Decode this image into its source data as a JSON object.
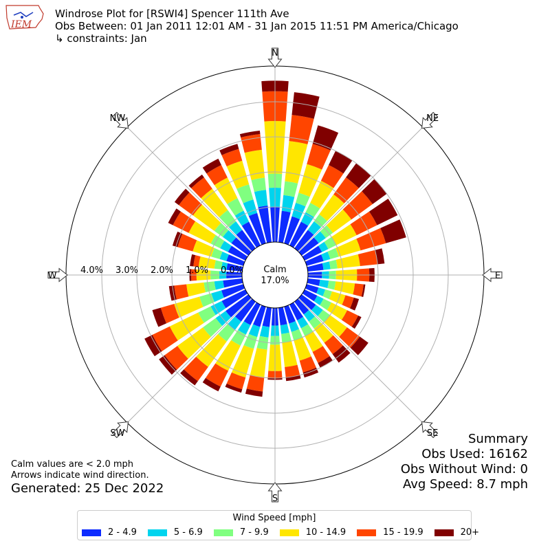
{
  "header": {
    "title": "Windrose Plot for [RSWI4] Spencer 111th Ave",
    "period": "Obs Between: 01 Jan 2011 12:01 AM - 31 Jan 2015 11:51 PM America/Chicago",
    "constraints": "↳ constraints: Jan"
  },
  "logo": {
    "text": "IEM",
    "icon": "iowa-state-outline-icon"
  },
  "summary": {
    "title": "Summary",
    "obs_used": "Obs Used: 16162",
    "obs_without_wind": "Obs Without Wind: 0",
    "avg_speed": "Avg Speed: 8.7 mph"
  },
  "notes": {
    "calm_note": "Calm values are < 2.0 mph",
    "arrow_note": "Arrows indicate wind direction.",
    "generated": "Generated: 25 Dec 2022"
  },
  "chart_data": {
    "type": "windrose",
    "calm_label": "Calm",
    "calm_value": "17.0%",
    "calm_percent": 17.0,
    "radial_ticks": [
      "0.0%",
      "1.0%",
      "2.0%",
      "3.0%",
      "4.0%"
    ],
    "radial_tick_values": [
      0,
      1,
      2,
      3,
      4
    ],
    "radial_max": 4.5,
    "compass_labels": [
      "N",
      "NE",
      "E",
      "SE",
      "S",
      "SW",
      "W",
      "NW"
    ],
    "compass_angles_deg": [
      0,
      45,
      90,
      135,
      180,
      225,
      270,
      315
    ],
    "direction_bin_width_deg": 10,
    "legend_title": "Wind Speed [mph]",
    "speed_bins": [
      {
        "label": "2 - 4.9",
        "color": "#0d2bff"
      },
      {
        "label": "5 - 6.9",
        "color": "#00d4ee"
      },
      {
        "label": "7 - 9.9",
        "color": "#80ff80"
      },
      {
        "label": "10 - 14.9",
        "color": "#ffe600"
      },
      {
        "label": "15 - 19.9",
        "color": "#ff4500"
      },
      {
        "label": "20+",
        "color": "#800000"
      }
    ],
    "directions": [
      0,
      10,
      20,
      30,
      40,
      50,
      60,
      70,
      80,
      90,
      100,
      110,
      120,
      130,
      140,
      150,
      160,
      170,
      180,
      190,
      200,
      210,
      220,
      230,
      240,
      250,
      260,
      270,
      280,
      290,
      300,
      310,
      320,
      330,
      340,
      350
    ],
    "cumulative_percent": [
      [
        1.0,
        1.55,
        1.95,
        3.45,
        4.3,
        4.6
      ],
      [
        0.9,
        1.35,
        1.75,
        2.9,
        3.65,
        4.3
      ],
      [
        0.8,
        1.2,
        1.5,
        2.35,
        2.95,
        3.5
      ],
      [
        0.75,
        1.05,
        1.35,
        2.05,
        2.55,
        3.0
      ],
      [
        0.65,
        0.95,
        1.2,
        1.9,
        2.5,
        3.0
      ],
      [
        0.6,
        0.85,
        1.1,
        1.75,
        2.5,
        3.0
      ],
      [
        0.55,
        0.75,
        1.0,
        1.65,
        2.3,
        2.95
      ],
      [
        0.5,
        0.7,
        0.95,
        1.6,
        2.35,
        2.95
      ],
      [
        0.45,
        0.65,
        0.85,
        1.5,
        2.0,
        2.2
      ],
      [
        0.4,
        0.6,
        0.8,
        1.4,
        1.75,
        1.9
      ],
      [
        0.35,
        0.6,
        0.8,
        1.35,
        1.6,
        1.65
      ],
      [
        0.35,
        0.55,
        0.75,
        1.15,
        1.4,
        1.55
      ],
      [
        0.4,
        0.6,
        0.85,
        1.35,
        1.7,
        1.8
      ],
      [
        0.5,
        0.75,
        1.0,
        1.6,
        2.05,
        2.35
      ],
      [
        0.45,
        0.7,
        0.95,
        1.45,
        1.85,
        2.15
      ],
      [
        0.5,
        0.75,
        1.0,
        1.5,
        1.85,
        2.0
      ],
      [
        0.5,
        0.75,
        1.0,
        1.6,
        1.95,
        2.1
      ],
      [
        0.5,
        0.75,
        1.0,
        1.7,
        2.0,
        2.1
      ],
      [
        0.5,
        0.8,
        1.05,
        1.8,
        2.0,
        2.05
      ],
      [
        0.55,
        0.85,
        1.2,
        2.0,
        2.4,
        2.55
      ],
      [
        0.6,
        0.9,
        1.25,
        2.1,
        2.45,
        2.55
      ],
      [
        0.65,
        0.95,
        1.3,
        2.1,
        2.6,
        2.75
      ],
      [
        0.7,
        1.0,
        1.4,
        2.3,
        2.8,
        2.95
      ],
      [
        0.8,
        1.15,
        1.6,
        2.5,
        2.95,
        3.15
      ],
      [
        0.75,
        1.1,
        1.5,
        2.4,
        2.95,
        3.2
      ],
      [
        0.65,
        0.95,
        1.3,
        2.05,
        2.45,
        2.7
      ],
      [
        0.55,
        0.8,
        1.1,
        1.6,
        1.95,
        2.1
      ],
      [
        0.45,
        0.65,
        0.9,
        1.3,
        1.45,
        1.5
      ],
      [
        0.45,
        0.6,
        0.8,
        1.25,
        1.4,
        1.5
      ],
      [
        0.5,
        0.7,
        0.95,
        1.5,
        1.95,
        2.1
      ],
      [
        0.55,
        0.8,
        1.1,
        1.8,
        2.3,
        2.45
      ],
      [
        0.6,
        0.9,
        1.2,
        1.95,
        2.45,
        2.6
      ],
      [
        0.65,
        0.95,
        1.35,
        2.1,
        2.5,
        2.6
      ],
      [
        0.75,
        1.1,
        1.5,
        2.15,
        2.55,
        2.75
      ],
      [
        0.9,
        1.3,
        1.75,
        2.45,
        2.8,
        2.95
      ],
      [
        1.05,
        1.5,
        1.85,
        2.65,
        3.1,
        3.2
      ]
    ]
  }
}
